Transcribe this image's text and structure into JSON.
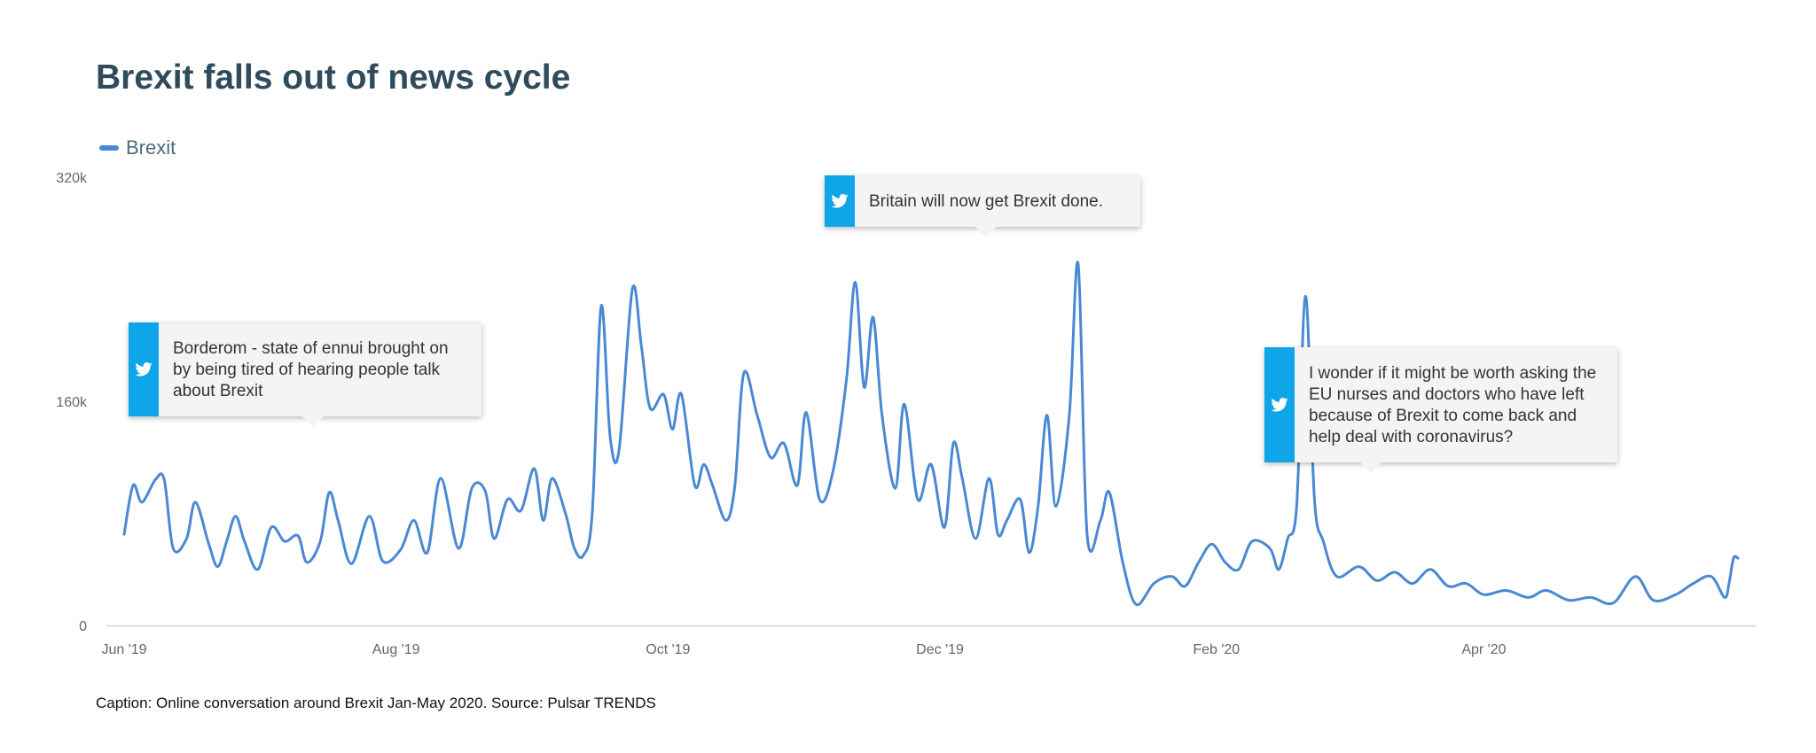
{
  "title": "Brexit falls out of news cycle",
  "caption": "Caption: Online conversation around Brexit Jan-May 2020. Source: Pulsar TRENDS",
  "icons": {
    "callout": "twitter-bird-icon"
  },
  "colors": {
    "series": "#4a88d4",
    "callout_bar": "#0ea5e9",
    "title": "#2f4b5c"
  },
  "callouts": [
    {
      "text": "Borderom - state of ennui brought on by being tired of hearing people talk about Brexit"
    },
    {
      "text": "Britain will now get Brexit done."
    },
    {
      "text": "I wonder if it might be worth asking the EU nurses and doctors who have left because of Brexit to come back and help deal with coronavirus?"
    }
  ],
  "chart_data": {
    "type": "line",
    "title": "Brexit falls out of news cycle",
    "legend": {
      "entries": [
        "Brexit"
      ],
      "position": "top-left"
    },
    "x_range": [
      "2019-06-01",
      "2020-05-28"
    ],
    "xticks": [
      "Jun '19",
      "Aug '19",
      "Oct '19",
      "Dec '19",
      "Feb '20",
      "Apr '20"
    ],
    "y_range": [
      0,
      320000
    ],
    "yticks": [
      "0",
      "160k",
      "320k"
    ],
    "grid": false,
    "series": [
      {
        "name": "Brexit",
        "points": [
          [
            "2019-06-01",
            65000
          ],
          [
            "2019-06-03",
            100000
          ],
          [
            "2019-06-05",
            88000
          ],
          [
            "2019-06-08",
            104000
          ],
          [
            "2019-06-10",
            104000
          ],
          [
            "2019-06-12",
            55000
          ],
          [
            "2019-06-15",
            62000
          ],
          [
            "2019-06-17",
            88000
          ],
          [
            "2019-06-20",
            58000
          ],
          [
            "2019-06-22",
            42000
          ],
          [
            "2019-06-24",
            60000
          ],
          [
            "2019-06-26",
            78000
          ],
          [
            "2019-06-28",
            60000
          ],
          [
            "2019-07-01",
            40000
          ],
          [
            "2019-07-04",
            70000
          ],
          [
            "2019-07-07",
            60000
          ],
          [
            "2019-07-10",
            64000
          ],
          [
            "2019-07-12",
            45000
          ],
          [
            "2019-07-15",
            60000
          ],
          [
            "2019-07-17",
            95000
          ],
          [
            "2019-07-19",
            75000
          ],
          [
            "2019-07-22",
            44000
          ],
          [
            "2019-07-26",
            78000
          ],
          [
            "2019-07-29",
            46000
          ],
          [
            "2019-08-02",
            54000
          ],
          [
            "2019-08-05",
            75000
          ],
          [
            "2019-08-08",
            52000
          ],
          [
            "2019-08-11",
            105000
          ],
          [
            "2019-08-15",
            55000
          ],
          [
            "2019-08-18",
            98000
          ],
          [
            "2019-08-21",
            96000
          ],
          [
            "2019-08-23",
            62000
          ],
          [
            "2019-08-26",
            90000
          ],
          [
            "2019-08-29",
            82000
          ],
          [
            "2019-09-01",
            112000
          ],
          [
            "2019-09-03",
            75000
          ],
          [
            "2019-09-05",
            105000
          ],
          [
            "2019-09-08",
            80000
          ],
          [
            "2019-09-10",
            55000
          ],
          [
            "2019-09-12",
            50000
          ],
          [
            "2019-09-14",
            80000
          ],
          [
            "2019-09-16",
            228000
          ],
          [
            "2019-09-18",
            135000
          ],
          [
            "2019-09-20",
            125000
          ],
          [
            "2019-09-23",
            240000
          ],
          [
            "2019-09-25",
            200000
          ],
          [
            "2019-09-27",
            155000
          ],
          [
            "2019-09-30",
            165000
          ],
          [
            "2019-10-02",
            140000
          ],
          [
            "2019-10-04",
            165000
          ],
          [
            "2019-10-07",
            100000
          ],
          [
            "2019-10-09",
            115000
          ],
          [
            "2019-10-11",
            100000
          ],
          [
            "2019-10-14",
            75000
          ],
          [
            "2019-10-16",
            100000
          ],
          [
            "2019-10-18",
            180000
          ],
          [
            "2019-10-21",
            150000
          ],
          [
            "2019-10-24",
            120000
          ],
          [
            "2019-10-27",
            130000
          ],
          [
            "2019-10-30",
            100000
          ],
          [
            "2019-11-01",
            152000
          ],
          [
            "2019-11-04",
            90000
          ],
          [
            "2019-11-07",
            110000
          ],
          [
            "2019-11-10",
            175000
          ],
          [
            "2019-11-12",
            245000
          ],
          [
            "2019-11-14",
            170000
          ],
          [
            "2019-11-16",
            220000
          ],
          [
            "2019-11-18",
            150000
          ],
          [
            "2019-11-21",
            98000
          ],
          [
            "2019-11-23",
            158000
          ],
          [
            "2019-11-26",
            90000
          ],
          [
            "2019-11-29",
            115000
          ],
          [
            "2019-12-02",
            70000
          ],
          [
            "2019-12-04",
            130000
          ],
          [
            "2019-12-06",
            105000
          ],
          [
            "2019-12-09",
            62000
          ],
          [
            "2019-12-12",
            105000
          ],
          [
            "2019-12-14",
            65000
          ],
          [
            "2019-12-16",
            75000
          ],
          [
            "2019-12-19",
            90000
          ],
          [
            "2019-12-21",
            52000
          ],
          [
            "2019-12-23",
            85000
          ],
          [
            "2019-12-25",
            150000
          ],
          [
            "2019-12-27",
            85000
          ],
          [
            "2019-12-30",
            150000
          ],
          [
            "2020-01-01",
            258000
          ],
          [
            "2020-01-03",
            65000
          ],
          [
            "2020-01-06",
            75000
          ],
          [
            "2020-01-08",
            95000
          ],
          [
            "2020-01-11",
            45000
          ],
          [
            "2020-01-14",
            15000
          ],
          [
            "2020-01-18",
            30000
          ],
          [
            "2020-01-22",
            35000
          ],
          [
            "2020-01-25",
            28000
          ],
          [
            "2020-01-28",
            45000
          ],
          [
            "2020-01-31",
            58000
          ],
          [
            "2020-02-03",
            45000
          ],
          [
            "2020-02-06",
            40000
          ],
          [
            "2020-02-09",
            60000
          ],
          [
            "2020-02-13",
            55000
          ],
          [
            "2020-02-15",
            40000
          ],
          [
            "2020-02-17",
            62000
          ],
          [
            "2020-02-19",
            85000
          ],
          [
            "2020-02-21",
            235000
          ],
          [
            "2020-02-23",
            90000
          ],
          [
            "2020-02-25",
            60000
          ],
          [
            "2020-02-28",
            35000
          ],
          [
            "2020-03-04",
            42000
          ],
          [
            "2020-03-08",
            32000
          ],
          [
            "2020-03-12",
            38000
          ],
          [
            "2020-03-16",
            30000
          ],
          [
            "2020-03-20",
            40000
          ],
          [
            "2020-03-24",
            28000
          ],
          [
            "2020-03-28",
            30000
          ],
          [
            "2020-04-01",
            22000
          ],
          [
            "2020-04-06",
            25000
          ],
          [
            "2020-04-11",
            20000
          ],
          [
            "2020-04-15",
            25000
          ],
          [
            "2020-04-20",
            18000
          ],
          [
            "2020-04-25",
            20000
          ],
          [
            "2020-04-30",
            16000
          ],
          [
            "2020-05-05",
            35000
          ],
          [
            "2020-05-09",
            18000
          ],
          [
            "2020-05-14",
            22000
          ],
          [
            "2020-05-18",
            30000
          ],
          [
            "2020-05-22",
            35000
          ],
          [
            "2020-05-25",
            20000
          ],
          [
            "2020-05-26",
            30000
          ],
          [
            "2020-05-27",
            48000
          ],
          [
            "2020-05-28",
            48000
          ]
        ]
      }
    ]
  }
}
